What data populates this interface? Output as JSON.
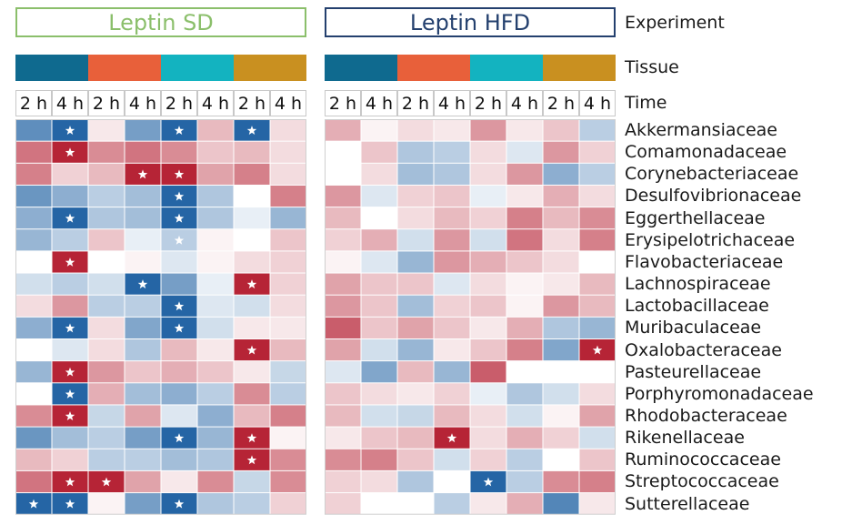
{
  "panels": {
    "sd_title": "Leptin SD",
    "hfd_title": "Leptin HFD"
  },
  "row_labels": {
    "experiment": "Experiment",
    "tissue": "Tissue",
    "time": "Time"
  },
  "colors": {
    "experiment_sd": "#8bbf6b",
    "experiment_hfd": "#24406e",
    "tissue": [
      "#0f6a8f",
      "#e8603a",
      "#13b3c0",
      "#c99020"
    ],
    "high": "#b2182b",
    "low": "#1a5da0",
    "star": "#ffffff"
  },
  "time_labels": [
    "2 h",
    "4 h",
    "2 h",
    "4 h",
    "2 h",
    "4 h",
    "2 h",
    "4 h"
  ],
  "chart_data": {
    "type": "heatmap",
    "scale": "signed association, -1 (blue) to +1 (red); star = significant",
    "families": [
      "Akkermansiaceae",
      "Comamonadaceae",
      "Corynebacteriaceae",
      "Desulfovibrionaceae",
      "Eggerthellaceae",
      "Erysipelotrichaceae",
      "Flavobacteriaceae",
      "Lachnospiraceae",
      "Lactobacillaceae",
      "Muribaculaceae",
      "Oxalobacteraceae",
      "Pasteurellaceae",
      "Porphyromonadaceae",
      "Rhodobacteraceae",
      "Rikenellaceae",
      "Ruminococcaceae",
      "Streptococcaceae",
      "Sutterellaceae"
    ],
    "panels": [
      {
        "experiment": "Leptin SD",
        "values": [
          [
            -0.7,
            -0.95,
            0.1,
            -0.6,
            -0.95,
            0.3,
            -0.95,
            0.15
          ],
          [
            0.6,
            0.95,
            0.5,
            0.6,
            0.5,
            0.25,
            0.3,
            0.15
          ],
          [
            0.55,
            0.2,
            0.3,
            0.95,
            0.95,
            0.4,
            0.55,
            0.15
          ],
          [
            -0.65,
            -0.5,
            -0.3,
            -0.4,
            -0.95,
            -0.35,
            0.0,
            0.55
          ],
          [
            -0.5,
            -0.95,
            -0.35,
            -0.4,
            -0.95,
            -0.35,
            -0.1,
            -0.45
          ],
          [
            -0.45,
            -0.3,
            0.25,
            -0.1,
            -0.3,
            0.05,
            0.0,
            0.25
          ],
          [
            0.0,
            0.95,
            0.0,
            0.05,
            -0.15,
            0.05,
            0.15,
            0.2
          ],
          [
            -0.2,
            -0.3,
            -0.2,
            -0.95,
            -0.6,
            -0.1,
            0.95,
            0.2
          ],
          [
            0.15,
            0.45,
            -0.3,
            -0.3,
            -0.95,
            -0.15,
            -0.2,
            0.15
          ],
          [
            -0.5,
            -0.95,
            0.15,
            -0.55,
            -0.95,
            -0.2,
            0.1,
            0.1
          ],
          [
            0.0,
            -0.15,
            0.15,
            -0.35,
            0.3,
            0.1,
            0.95,
            0.3
          ],
          [
            -0.45,
            0.95,
            0.45,
            0.25,
            0.35,
            0.25,
            0.1,
            -0.25
          ],
          [
            0.0,
            -0.95,
            0.35,
            -0.4,
            -0.5,
            -0.3,
            0.5,
            -0.3
          ],
          [
            0.5,
            0.95,
            -0.25,
            0.4,
            -0.15,
            -0.5,
            0.3,
            0.55
          ],
          [
            -0.65,
            -0.4,
            -0.3,
            -0.6,
            -0.95,
            -0.45,
            0.95,
            0.05
          ],
          [
            0.3,
            0.2,
            -0.3,
            -0.3,
            -0.4,
            -0.35,
            0.95,
            0.5
          ],
          [
            0.6,
            0.95,
            0.95,
            0.4,
            0.1,
            0.5,
            -0.25,
            0.5
          ],
          [
            -0.95,
            -0.95,
            0.05,
            -0.6,
            -0.95,
            -0.35,
            -0.3,
            0.2
          ]
        ],
        "stars": [
          [
            0,
            1
          ],
          [
            0,
            4
          ],
          [
            0,
            6
          ],
          [
            1,
            1
          ],
          [
            2,
            3
          ],
          [
            2,
            4
          ],
          [
            3,
            4
          ],
          [
            4,
            1
          ],
          [
            4,
            4
          ],
          [
            5,
            4
          ],
          [
            6,
            1
          ],
          [
            7,
            3
          ],
          [
            7,
            6
          ],
          [
            8,
            4
          ],
          [
            9,
            1
          ],
          [
            9,
            4
          ],
          [
            10,
            6
          ],
          [
            11,
            1
          ],
          [
            12,
            1
          ],
          [
            13,
            1
          ],
          [
            14,
            4
          ],
          [
            14,
            6
          ],
          [
            15,
            6
          ],
          [
            16,
            1
          ],
          [
            16,
            2
          ],
          [
            17,
            0
          ],
          [
            17,
            1
          ],
          [
            17,
            4
          ]
        ]
      },
      {
        "experiment": "Leptin HFD",
        "values": [
          [
            0.35,
            0.05,
            0.15,
            0.1,
            0.45,
            0.1,
            0.25,
            -0.3
          ],
          [
            0.0,
            0.25,
            -0.35,
            -0.3,
            0.15,
            -0.15,
            0.45,
            0.2
          ],
          [
            0.0,
            0.15,
            -0.4,
            -0.35,
            0.15,
            0.45,
            -0.5,
            -0.3
          ],
          [
            0.45,
            -0.15,
            0.2,
            0.25,
            -0.1,
            0.1,
            0.35,
            0.15
          ],
          [
            0.3,
            0.0,
            0.15,
            0.3,
            0.2,
            0.55,
            0.3,
            0.5
          ],
          [
            0.2,
            0.35,
            -0.2,
            0.45,
            -0.2,
            0.6,
            0.15,
            0.55
          ],
          [
            0.05,
            -0.15,
            -0.45,
            0.45,
            0.35,
            0.25,
            0.15,
            0.0
          ],
          [
            0.4,
            0.25,
            0.25,
            -0.15,
            0.15,
            0.05,
            0.1,
            0.3
          ],
          [
            0.45,
            0.25,
            -0.4,
            0.2,
            0.25,
            0.05,
            0.45,
            0.3
          ],
          [
            0.7,
            0.25,
            0.4,
            0.25,
            0.1,
            0.35,
            -0.35,
            -0.45
          ],
          [
            0.4,
            -0.2,
            -0.45,
            0.1,
            0.25,
            0.55,
            -0.55,
            0.95
          ],
          [
            -0.15,
            -0.55,
            0.3,
            -0.45,
            0.7,
            0.0,
            0.0,
            0.0
          ],
          [
            0.25,
            0.15,
            0.1,
            0.2,
            -0.1,
            -0.35,
            -0.2,
            0.15
          ],
          [
            0.3,
            -0.2,
            -0.25,
            0.3,
            0.15,
            -0.2,
            0.05,
            0.4
          ],
          [
            0.1,
            0.25,
            0.3,
            0.95,
            0.15,
            0.35,
            0.2,
            -0.2
          ],
          [
            0.5,
            0.55,
            0.25,
            -0.2,
            0.2,
            -0.3,
            0.0,
            0.25
          ],
          [
            0.2,
            0.15,
            -0.35,
            0.0,
            -0.95,
            -0.3,
            0.5,
            0.55
          ],
          [
            0.2,
            0.0,
            0.0,
            -0.3,
            0.1,
            0.35,
            -0.75,
            0.1
          ]
        ],
        "stars": [
          [
            10,
            7
          ],
          [
            14,
            3
          ],
          [
            16,
            4
          ]
        ]
      }
    ]
  }
}
